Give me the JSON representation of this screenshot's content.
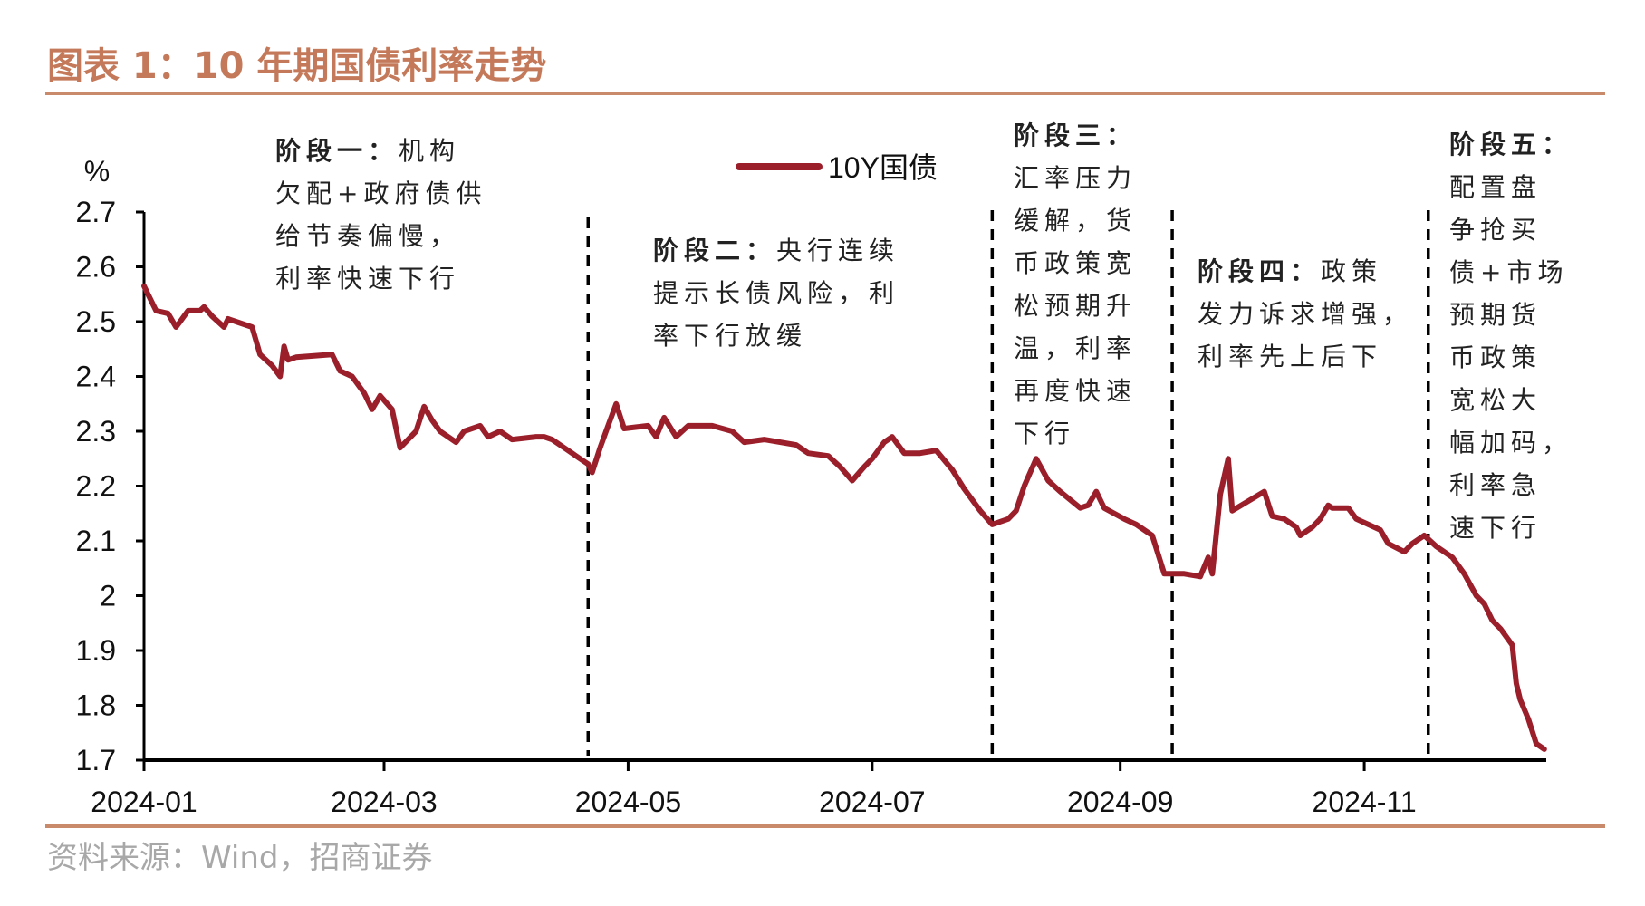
{
  "title": "图表 1：10 年期国债利率走势",
  "source": "资料来源：Wind，招商证券",
  "colors": {
    "series": "#9b1f2b",
    "title": "#c47a5a",
    "rule": "#c98a6c",
    "source": "#a8a8a8"
  },
  "annotations": {
    "phase1": {
      "head": "阶段一：",
      "head_rest": "机构",
      "lines": [
        "欠配+政府债供",
        "给节奏偏慢，",
        "利率快速下行"
      ]
    },
    "phase2": {
      "head": "阶段二：",
      "head_rest": "央行连续",
      "lines": [
        "提示长债风险，利",
        "率下行放缓"
      ]
    },
    "phase3": {
      "head": "阶段三：",
      "head_rest": "",
      "lines": [
        "汇率压力",
        "缓解，货",
        "币政策宽",
        "松预期升",
        "温，利率",
        "再度快速",
        "下行"
      ]
    },
    "phase4": {
      "head": "阶段四：",
      "head_rest": "政策",
      "lines": [
        "发力诉求增强，",
        "利率先上后下"
      ]
    },
    "phase5": {
      "head": "阶段五：",
      "head_rest": "",
      "lines": [
        "配置盘",
        "争抢买",
        "债+市场",
        "预期货",
        "币政策",
        "宽松大",
        "幅加码，",
        "利率急",
        "速下行"
      ]
    }
  },
  "chart_data": {
    "type": "line",
    "title": "图表 1：10 年期国债利率走势",
    "xlabel": "",
    "ylabel": "%",
    "ylim": [
      1.7,
      2.7
    ],
    "xlim": [
      "2024-01-01",
      "2024-12-20"
    ],
    "yticks": [
      "2.7",
      "2.6",
      "2.5",
      "2.4",
      "2.3",
      "2.2",
      "2.1",
      "2",
      "1.9",
      "1.8",
      "1.7"
    ],
    "xticks": [
      "2024-01",
      "2024-03",
      "2024-05",
      "2024-07",
      "2024-09",
      "2024-11"
    ],
    "grid": false,
    "legend": "top-center",
    "phase_dividers": [
      "2024-04-21",
      "2024-07-31",
      "2024-09-14",
      "2024-11-17"
    ],
    "series": [
      {
        "name": "10Y国债",
        "color": "#9b1f2b",
        "points": [
          [
            "2024-01-01",
            2.565
          ],
          [
            "2024-01-02",
            2.55
          ],
          [
            "2024-01-04",
            2.52
          ],
          [
            "2024-01-07",
            2.515
          ],
          [
            "2024-01-09",
            2.49
          ],
          [
            "2024-01-10",
            2.5
          ],
          [
            "2024-01-12",
            2.52
          ],
          [
            "2024-01-15",
            2.52
          ],
          [
            "2024-01-16",
            2.527
          ],
          [
            "2024-01-18",
            2.51
          ],
          [
            "2024-01-21",
            2.49
          ],
          [
            "2024-01-22",
            2.505
          ],
          [
            "2024-01-24",
            2.5
          ],
          [
            "2024-01-28",
            2.49
          ],
          [
            "2024-01-30",
            2.44
          ],
          [
            "2024-02-02",
            2.42
          ],
          [
            "2024-02-04",
            2.4
          ],
          [
            "2024-02-05",
            2.455
          ],
          [
            "2024-02-06",
            2.43
          ],
          [
            "2024-02-08",
            2.435
          ],
          [
            "2024-02-17",
            2.44
          ],
          [
            "2024-02-19",
            2.41
          ],
          [
            "2024-02-22",
            2.4
          ],
          [
            "2024-02-25",
            2.37
          ],
          [
            "2024-02-27",
            2.34
          ],
          [
            "2024-02-29",
            2.365
          ],
          [
            "2024-03-03",
            2.34
          ],
          [
            "2024-03-05",
            2.27
          ],
          [
            "2024-03-09",
            2.3
          ],
          [
            "2024-03-11",
            2.345
          ],
          [
            "2024-03-13",
            2.32
          ],
          [
            "2024-03-15",
            2.3
          ],
          [
            "2024-03-19",
            2.28
          ],
          [
            "2024-03-21",
            2.3
          ],
          [
            "2024-03-25",
            2.31
          ],
          [
            "2024-03-27",
            2.29
          ],
          [
            "2024-03-30",
            2.3
          ],
          [
            "2024-04-02",
            2.285
          ],
          [
            "2024-04-08",
            2.29
          ],
          [
            "2024-04-10",
            2.29
          ],
          [
            "2024-04-12",
            2.285
          ],
          [
            "2024-04-15",
            2.27
          ],
          [
            "2024-04-19",
            2.25
          ],
          [
            "2024-04-21",
            2.24
          ],
          [
            "2024-04-22",
            2.225
          ],
          [
            "2024-04-24",
            2.27
          ],
          [
            "2024-04-26",
            2.31
          ],
          [
            "2024-04-28",
            2.35
          ],
          [
            "2024-04-30",
            2.305
          ],
          [
            "2024-05-06",
            2.31
          ],
          [
            "2024-05-08",
            2.29
          ],
          [
            "2024-05-10",
            2.325
          ],
          [
            "2024-05-13",
            2.29
          ],
          [
            "2024-05-16",
            2.31
          ],
          [
            "2024-05-22",
            2.31
          ],
          [
            "2024-05-27",
            2.3
          ],
          [
            "2024-05-30",
            2.28
          ],
          [
            "2024-06-04",
            2.285
          ],
          [
            "2024-06-12",
            2.275
          ],
          [
            "2024-06-15",
            2.26
          ],
          [
            "2024-06-20",
            2.255
          ],
          [
            "2024-06-23",
            2.235
          ],
          [
            "2024-06-26",
            2.21
          ],
          [
            "2024-06-29",
            2.235
          ],
          [
            "2024-07-01",
            2.25
          ],
          [
            "2024-07-04",
            2.28
          ],
          [
            "2024-07-06",
            2.29
          ],
          [
            "2024-07-09",
            2.26
          ],
          [
            "2024-07-13",
            2.26
          ],
          [
            "2024-07-17",
            2.265
          ],
          [
            "2024-07-21",
            2.23
          ],
          [
            "2024-07-24",
            2.195
          ],
          [
            "2024-07-28",
            2.155
          ],
          [
            "2024-07-31",
            2.13
          ],
          [
            "2024-08-04",
            2.14
          ],
          [
            "2024-08-06",
            2.155
          ],
          [
            "2024-08-08",
            2.2
          ],
          [
            "2024-08-11",
            2.25
          ],
          [
            "2024-08-14",
            2.21
          ],
          [
            "2024-08-17",
            2.19
          ],
          [
            "2024-08-22",
            2.16
          ],
          [
            "2024-08-24",
            2.165
          ],
          [
            "2024-08-26",
            2.19
          ],
          [
            "2024-08-28",
            2.16
          ],
          [
            "2024-09-02",
            2.14
          ],
          [
            "2024-09-05",
            2.13
          ],
          [
            "2024-09-09",
            2.11
          ],
          [
            "2024-09-12",
            2.04
          ],
          [
            "2024-09-17",
            2.04
          ],
          [
            "2024-09-21",
            2.035
          ],
          [
            "2024-09-23",
            2.07
          ],
          [
            "2024-09-24",
            2.04
          ],
          [
            "2024-09-26",
            2.185
          ],
          [
            "2024-09-28",
            2.25
          ],
          [
            "2024-09-29",
            2.155
          ],
          [
            "2024-10-07",
            2.19
          ],
          [
            "2024-10-09",
            2.145
          ],
          [
            "2024-10-12",
            2.14
          ],
          [
            "2024-10-15",
            2.125
          ],
          [
            "2024-10-16",
            2.11
          ],
          [
            "2024-10-19",
            2.125
          ],
          [
            "2024-10-21",
            2.14
          ],
          [
            "2024-10-23",
            2.165
          ],
          [
            "2024-10-24",
            2.16
          ],
          [
            "2024-10-28",
            2.16
          ],
          [
            "2024-10-30",
            2.14
          ],
          [
            "2024-11-05",
            2.12
          ],
          [
            "2024-11-07",
            2.095
          ],
          [
            "2024-11-11",
            2.08
          ],
          [
            "2024-11-13",
            2.095
          ],
          [
            "2024-11-16",
            2.11
          ],
          [
            "2024-11-19",
            2.09
          ],
          [
            "2024-11-23",
            2.07
          ],
          [
            "2024-11-26",
            2.04
          ],
          [
            "2024-11-29",
            2.0
          ],
          [
            "2024-12-01",
            1.985
          ],
          [
            "2024-12-03",
            1.955
          ],
          [
            "2024-12-05",
            1.94
          ],
          [
            "2024-12-08",
            1.91
          ],
          [
            "2024-12-09",
            1.84
          ],
          [
            "2024-12-10",
            1.81
          ],
          [
            "2024-12-12",
            1.775
          ],
          [
            "2024-12-14",
            1.73
          ],
          [
            "2024-12-16",
            1.72
          ]
        ]
      }
    ]
  }
}
